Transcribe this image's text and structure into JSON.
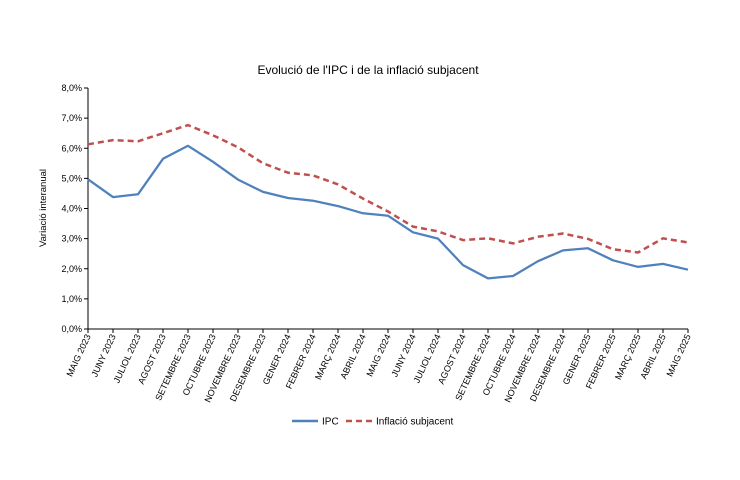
{
  "chart_data": {
    "type": "line",
    "title": "Evolució de l'IPC i de la inflació subjacent",
    "xlabel": "",
    "ylabel": "Variació interanual",
    "ylim": [
      0,
      8
    ],
    "yticks": [
      "0,0%",
      "1,0%",
      "2,0%",
      "3,0%",
      "4,0%",
      "5,0%",
      "6,0%",
      "7,0%",
      "8,0%"
    ],
    "grid": false,
    "legend_position": "bottom",
    "categories": [
      "MAIG 2023",
      "JUNY 2023",
      "JULIOL 2023",
      "AGOST 2023",
      "SETEMBRE 2023",
      "OCTUBRE 2023",
      "NOVEMBRE 2023",
      "DESEMBRE 2023",
      "GENER 2024",
      "FEBRER 2024",
      "MARÇ 2024",
      "ABRIL 2024",
      "MAIG 2024",
      "JUNY 2024",
      "JULIOL 2024",
      "AGOST 2024",
      "SETEMBRE 2024",
      "OCTUBRE 2024",
      "NOVEMBRE 2024",
      "DESEMBRE 2024",
      "GENER 2025",
      "FEBRER 2025",
      "MARÇ 2025",
      "ABRIL 2025",
      "MAIG 2025"
    ],
    "series": [
      {
        "name": "IPC",
        "color": "#4f81bd",
        "style": "solid",
        "values": [
          4.97,
          4.38,
          4.47,
          5.65,
          6.08,
          5.55,
          4.96,
          4.55,
          4.35,
          4.26,
          4.08,
          3.84,
          3.76,
          3.21,
          3.0,
          2.12,
          1.68,
          1.76,
          2.25,
          2.61,
          2.68,
          2.28,
          2.06,
          2.16,
          1.97
        ]
      },
      {
        "name": "Inflació subjacent",
        "color": "#c0504d",
        "style": "dashed",
        "values": [
          6.13,
          6.27,
          6.23,
          6.5,
          6.77,
          6.43,
          6.03,
          5.5,
          5.19,
          5.1,
          4.8,
          4.33,
          3.9,
          3.4,
          3.24,
          2.95,
          3.01,
          2.84,
          3.06,
          3.17,
          2.99,
          2.65,
          2.54,
          3.01,
          2.87
        ]
      }
    ]
  }
}
